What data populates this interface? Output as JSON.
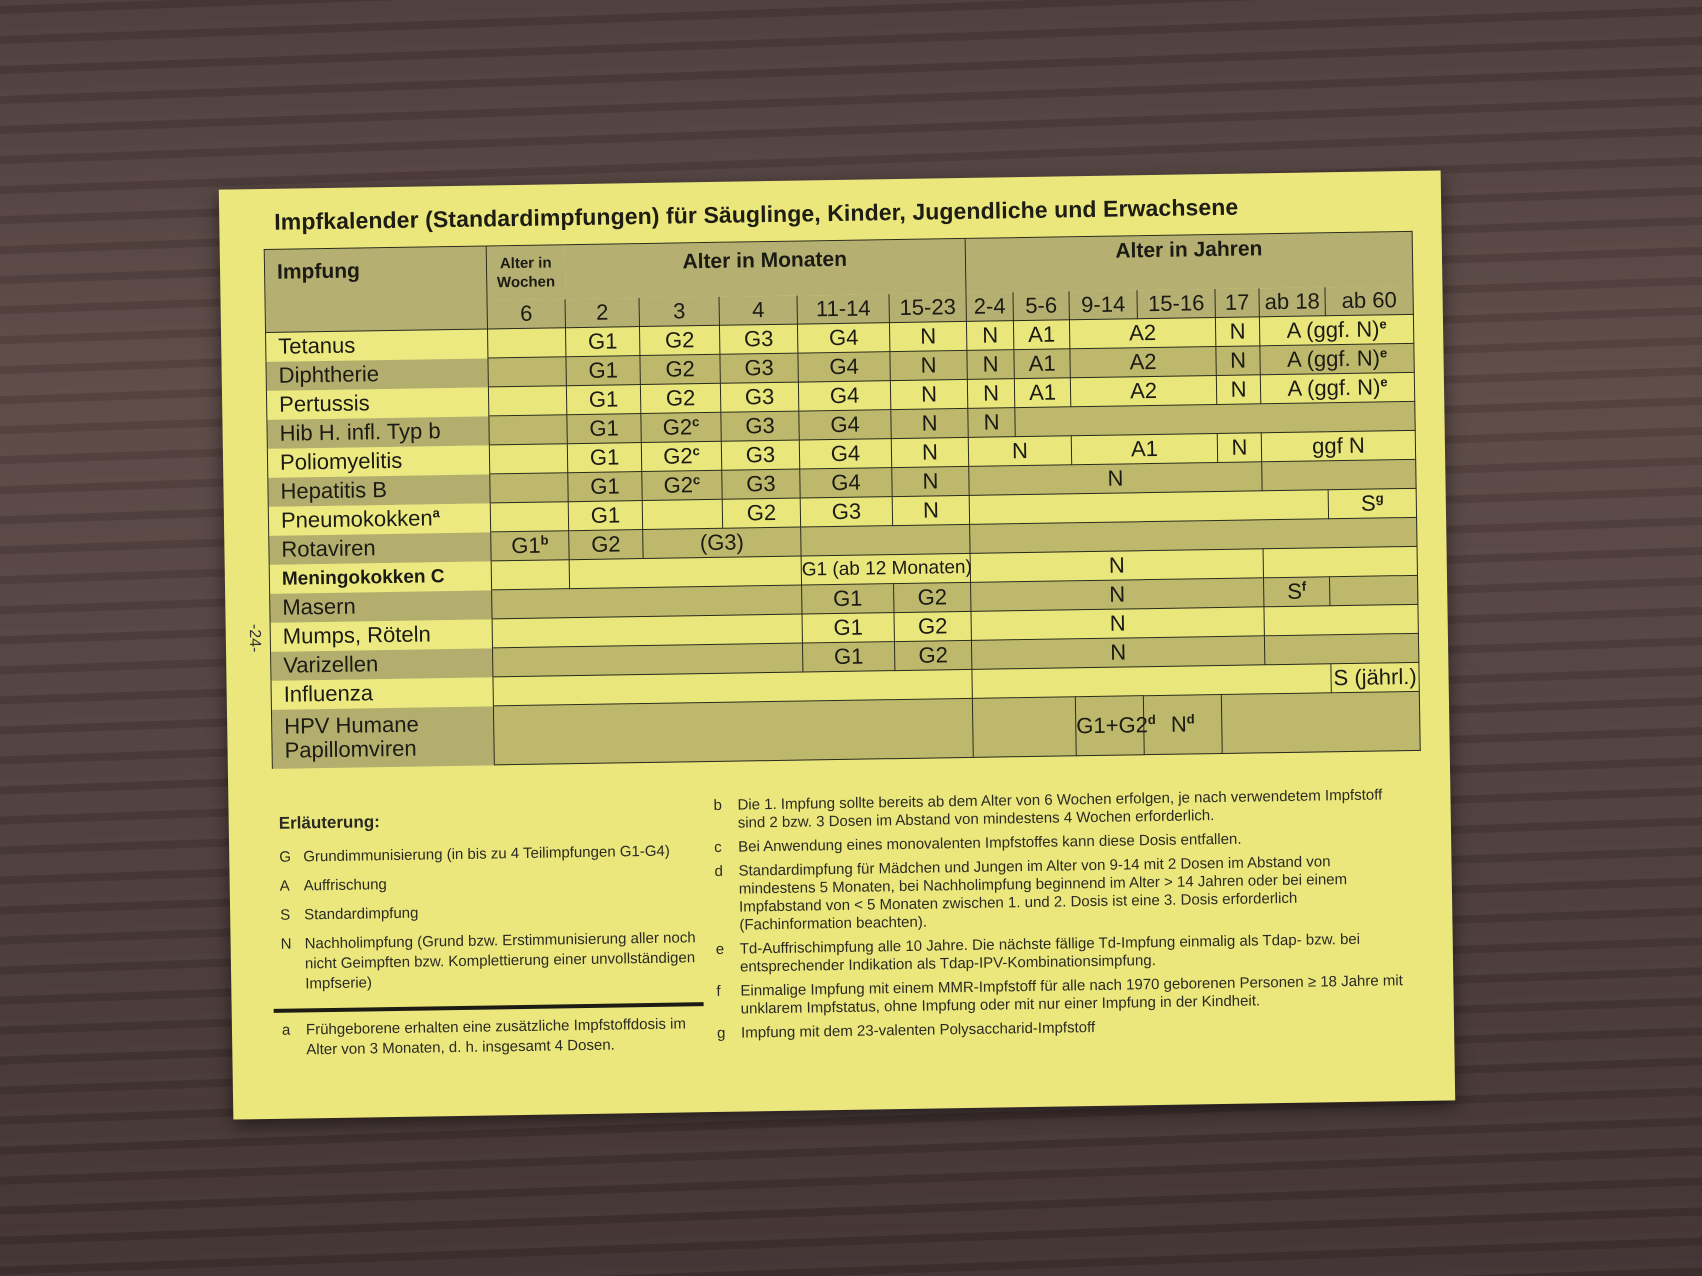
{
  "title": "Impfkalender (Standardimpfungen) für Säuglinge, Kinder, Jugendliche und Erwachsene",
  "page_number": "-24-",
  "header": {
    "vaccination": "Impfung",
    "weeks_group": "Alter in Wochen",
    "months_group": "Alter in Monaten",
    "years_group": "Alter in Jahren",
    "columns": [
      "6",
      "2",
      "3",
      "4",
      "11-14",
      "15-23",
      "2-4",
      "5-6",
      "9-14",
      "15-16",
      "17",
      "ab 18",
      "ab 60"
    ]
  },
  "rows": [
    {
      "name": "Tetanus",
      "cells": [
        [
          "",
          1
        ],
        [
          "G1",
          1
        ],
        [
          "G2",
          1
        ],
        [
          "G3",
          1
        ],
        [
          "G4",
          1
        ],
        [
          "N",
          1
        ],
        [
          "N",
          1
        ],
        [
          "A1",
          1
        ],
        [
          "A2",
          2
        ],
        [
          "N",
          1
        ],
        [
          "A (ggf. N)",
          2,
          "e"
        ]
      ]
    },
    {
      "name": "Diphtherie",
      "cells": [
        [
          "",
          1
        ],
        [
          "G1",
          1
        ],
        [
          "G2",
          1
        ],
        [
          "G3",
          1
        ],
        [
          "G4",
          1
        ],
        [
          "N",
          1
        ],
        [
          "N",
          1
        ],
        [
          "A1",
          1
        ],
        [
          "A2",
          2
        ],
        [
          "N",
          1
        ],
        [
          "A (ggf. N)",
          2,
          "e"
        ]
      ]
    },
    {
      "name": "Pertussis",
      "cells": [
        [
          "",
          1
        ],
        [
          "G1",
          1
        ],
        [
          "G2",
          1
        ],
        [
          "G3",
          1
        ],
        [
          "G4",
          1
        ],
        [
          "N",
          1
        ],
        [
          "N",
          1
        ],
        [
          "A1",
          1
        ],
        [
          "A2",
          2
        ],
        [
          "N",
          1
        ],
        [
          "A (ggf. N)",
          2,
          "e"
        ]
      ]
    },
    {
      "name": "Hib H. infl. Typ b",
      "cells": [
        [
          "",
          1
        ],
        [
          "G1",
          1
        ],
        [
          "G2",
          1,
          "c"
        ],
        [
          "G3",
          1
        ],
        [
          "G4",
          1
        ],
        [
          "N",
          1
        ],
        [
          "N",
          1
        ],
        [
          "",
          6
        ]
      ]
    },
    {
      "name": "Poliomyelitis",
      "cells": [
        [
          "",
          1
        ],
        [
          "G1",
          1
        ],
        [
          "G2",
          1,
          "c"
        ],
        [
          "G3",
          1
        ],
        [
          "G4",
          1
        ],
        [
          "N",
          1
        ],
        [
          "N",
          2
        ],
        [
          "A1",
          2
        ],
        [
          "N",
          1
        ],
        [
          "ggf N",
          2
        ]
      ]
    },
    {
      "name": "Hepatitis B",
      "cells": [
        [
          "",
          1
        ],
        [
          "G1",
          1
        ],
        [
          "G2",
          1,
          "c"
        ],
        [
          "G3",
          1
        ],
        [
          "G4",
          1
        ],
        [
          "N",
          1
        ],
        [
          "N",
          5
        ],
        [
          "",
          2
        ]
      ]
    },
    {
      "name": "Pneumokokken",
      "sup": "a",
      "cells": [
        [
          "",
          1
        ],
        [
          "G1",
          1
        ],
        [
          "",
          1
        ],
        [
          "G2",
          1
        ],
        [
          "G3",
          1
        ],
        [
          "N",
          1
        ],
        [
          "",
          6
        ],
        [
          "S",
          1,
          "g"
        ]
      ]
    },
    {
      "name": "Rotaviren",
      "cells": [
        [
          "G1",
          1,
          "b"
        ],
        [
          "G2",
          1
        ],
        [
          "(G3)",
          2
        ],
        [
          "",
          2
        ],
        [
          "",
          7
        ]
      ]
    },
    {
      "name": "Meningokokken C",
      "bold": true,
      "cells": [
        [
          "",
          1
        ],
        [
          "",
          3
        ],
        [
          "G1 (ab 12 Monaten)",
          2
        ],
        [
          "N",
          5
        ],
        [
          "",
          2
        ]
      ]
    },
    {
      "name": "Masern",
      "cells": [
        [
          "",
          4
        ],
        [
          "G1",
          1
        ],
        [
          "G2",
          1
        ],
        [
          "N",
          5
        ],
        [
          "S",
          1,
          "f"
        ],
        [
          "",
          1
        ]
      ]
    },
    {
      "name": "Mumps, Röteln",
      "cells": [
        [
          "",
          4
        ],
        [
          "G1",
          1
        ],
        [
          "G2",
          1
        ],
        [
          "N",
          5
        ],
        [
          "",
          2
        ]
      ]
    },
    {
      "name": "Varizellen",
      "cells": [
        [
          "",
          4
        ],
        [
          "G1",
          1
        ],
        [
          "G2",
          1
        ],
        [
          "N",
          5
        ],
        [
          "",
          2
        ]
      ]
    },
    {
      "name": "Influenza",
      "cells": [
        [
          "",
          6
        ],
        [
          "",
          6
        ],
        [
          "S (jährl.)",
          1
        ]
      ]
    },
    {
      "name": "HPV  Humane Papillomviren",
      "cells": [
        [
          "",
          6
        ],
        [
          "",
          2
        ],
        [
          "G1+G2",
          1,
          "d"
        ],
        [
          "N",
          1,
          "d"
        ],
        [
          "",
          3
        ]
      ]
    }
  ],
  "legend": {
    "heading": "Erläuterung:",
    "items": [
      {
        "key": "G",
        "text": "Grundimmunisierung (in bis zu 4 Teilimpfungen G1-G4)"
      },
      {
        "key": "A",
        "text": "Auffrischung"
      },
      {
        "key": "S",
        "text": "Standardimpfung"
      },
      {
        "key": "N",
        "text": "Nachholimpfung (Grund bzw. Erstimmunisierung aller noch nicht Geimpften bzw. Komplettierung einer unvollständigen Impfserie)"
      }
    ],
    "footnote_a": {
      "key": "a",
      "text": "Frühgeborene erhalten eine zusätzliche Impfstoffdosis im Alter von 3 Monaten, d. h. insgesamt 4 Dosen."
    }
  },
  "footnotes": [
    {
      "key": "b",
      "text": "Die 1. Impfung sollte bereits ab dem Alter von 6 Wochen erfolgen, je nach verwendetem Impfstoff sind 2 bzw. 3 Dosen im Abstand von mindestens 4 Wochen erforderlich."
    },
    {
      "key": "c",
      "text": "Bei Anwendung eines monovalenten Impfstoffes kann diese Dosis entfallen."
    },
    {
      "key": "d",
      "text": "Standardimpfung für Mädchen und Jungen im Alter von 9-14 mit 2 Dosen im Abstand von mindestens 5 Monaten, bei Nachholimpfung beginnend im Alter > 14 Jahren oder bei einem Impfabstand von < 5 Monaten zwischen 1. und 2. Dosis ist eine 3. Dosis erforderlich (Fachinformation beachten)."
    },
    {
      "key": "e",
      "text": "Td-Auffrischimpfung alle 10 Jahre. Die nächste fällige Td-Impfung einmalig als Tdap- bzw. bei entsprechender Indikation als Tdap-IPV-Kombinationsimpfung."
    },
    {
      "key": "f",
      "text": "Einmalige Impfung mit einem MMR-Impfstoff für alle nach 1970 geborenen Personen ≥ 18 Jahre mit unklarem Impfstatus, ohne Impfung oder mit nur einer Impfung in der Kindheit."
    },
    {
      "key": "g",
      "text": "Impfung mit dem 23-valenten Polysaccharid-Impfstoff"
    }
  ],
  "colors": {
    "paper": "#ebe77d",
    "header": "#b5b072",
    "row_light": "#e9e67c",
    "row_dark": "#bdb86b",
    "background_wood": "#4a3a38"
  }
}
